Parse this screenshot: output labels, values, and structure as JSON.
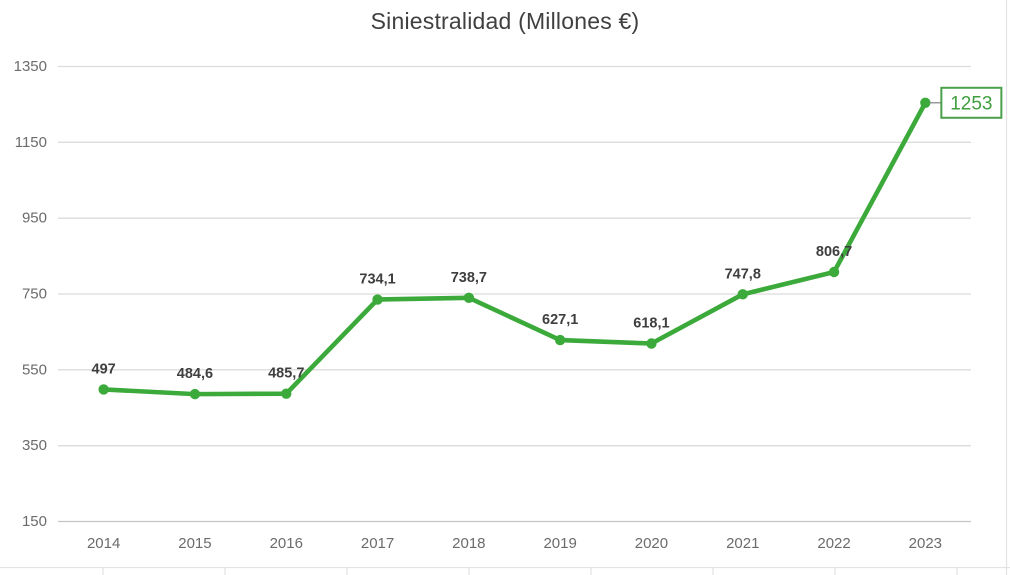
{
  "chart_data": {
    "type": "line",
    "title": "Siniestralidad (Millones €)",
    "categories": [
      "2014",
      "2015",
      "2016",
      "2017",
      "2018",
      "2019",
      "2020",
      "2021",
      "2022",
      "2023"
    ],
    "series": [
      {
        "name": "Siniestralidad",
        "values": [
          497,
          484.6,
          485.7,
          734.1,
          738.7,
          627.1,
          618.1,
          747.8,
          806.7,
          1253
        ],
        "point_labels": [
          "497",
          "484,6",
          "485,7",
          "734,1",
          "738,7",
          "627,1",
          "618,1",
          "747,8",
          "806,7",
          "1253"
        ]
      }
    ],
    "ylim": [
      150,
      1350
    ],
    "yticks": [
      150,
      350,
      550,
      750,
      950,
      1150,
      1350
    ],
    "xlabel": "",
    "ylabel": "",
    "grid": true,
    "legend": false,
    "last_point_callout": "1253",
    "colors": {
      "line": "#3BAA3B",
      "marker": "#3BAA3B",
      "callout_border": "#4AA04A",
      "callout_text": "#3F9F3F",
      "leader_line": "#8c8c8c",
      "gridline": "#dcdcdc",
      "axis_line": "#c4c4c4",
      "tick_label": "#6b6b6b",
      "data_label": "#3f3f3f",
      "title": "#404040",
      "sheet_gridline": "#e3e3e3"
    }
  }
}
